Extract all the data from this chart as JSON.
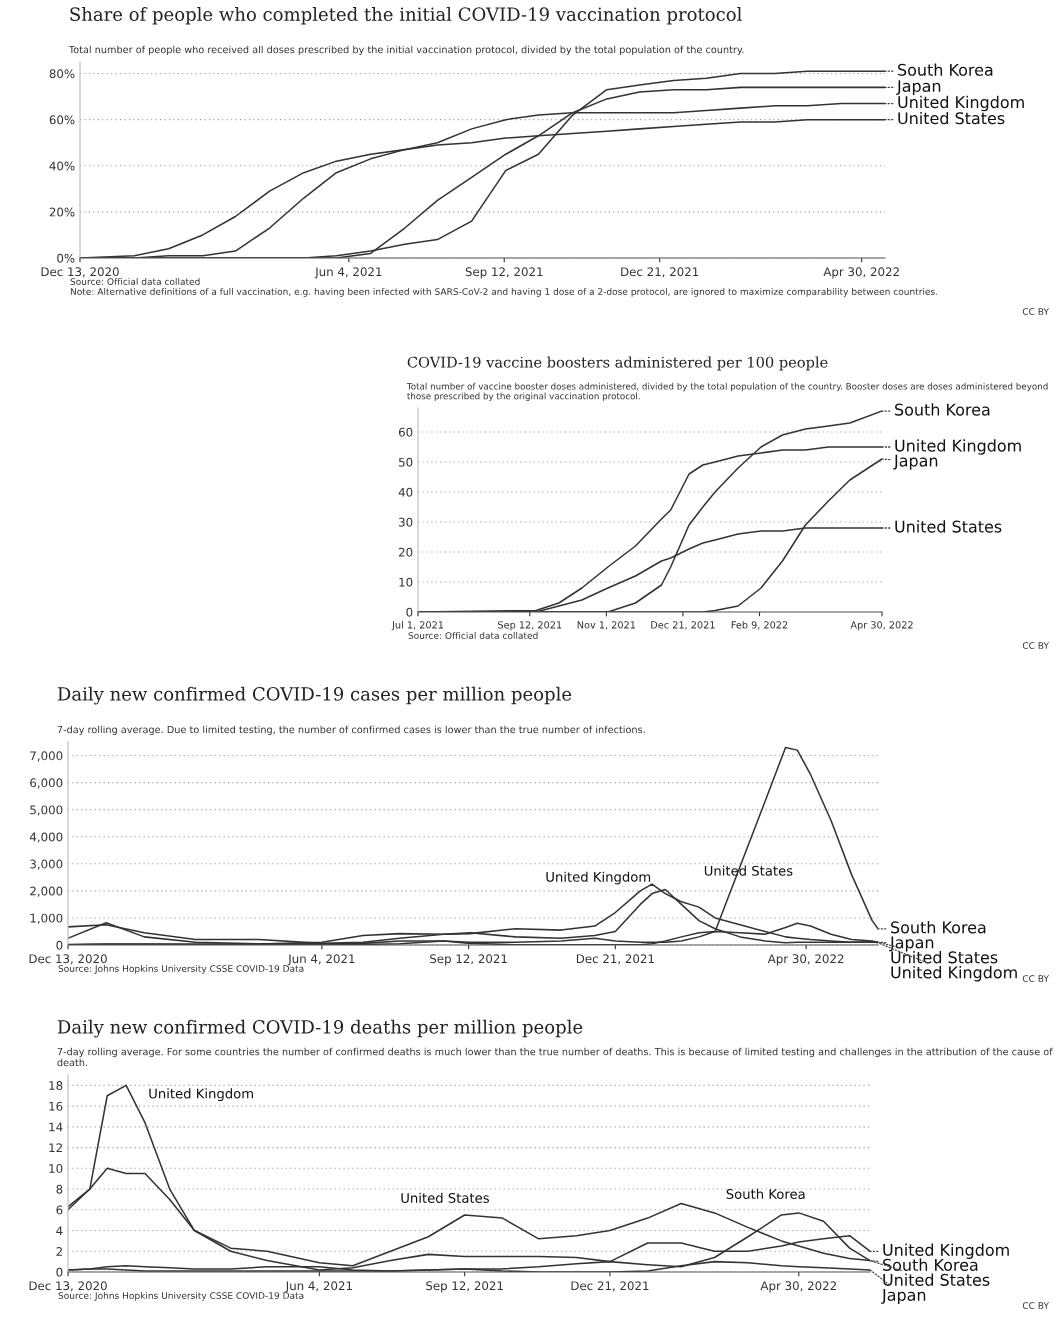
{
  "chart_data": [
    {
      "type": "line",
      "title": "Share of people who completed the initial COVID-19 vaccination protocol",
      "subtitle": "Total number of people who received all doses prescribed by the initial vaccination protocol, divided by the total population of the country.",
      "grid": "y",
      "annotations": [
        "Source: Official data collated",
        "Note: Alternative definitions of a full vaccination, e.g. having been infected with SARS-CoV-2 and having 1 dose of a 2-dose protocol, are ignored to maximize comparability between countries.",
        "CC BY"
      ],
      "x": [
        "2020-12-13",
        "2021-01-17",
        "2021-02-08",
        "2021-03-02",
        "2021-03-23",
        "2021-04-14",
        "2021-05-06",
        "2021-05-27",
        "2021-06-18",
        "2021-07-10",
        "2021-07-31",
        "2021-08-22",
        "2021-09-13",
        "2021-10-04",
        "2021-10-26",
        "2021-11-17",
        "2021-12-08",
        "2021-12-30",
        "2022-01-20",
        "2022-02-11",
        "2022-03-05",
        "2022-03-26",
        "2022-04-17",
        "2022-05-15"
      ],
      "series": [
        {
          "name": "South Korea",
          "color": "#333333",
          "values": [
            0,
            0,
            0,
            0,
            0,
            0,
            0,
            1,
            3,
            6,
            8,
            16,
            38,
            45,
            62,
            73,
            75,
            77,
            78,
            80,
            80,
            81,
            81,
            81
          ]
        },
        {
          "name": "Japan",
          "color": "#333333",
          "values": [
            0,
            0,
            0,
            0,
            0,
            0,
            0,
            0,
            2,
            13,
            25,
            35,
            45,
            53,
            63,
            69,
            72,
            73,
            73,
            74,
            74,
            74,
            74,
            74
          ]
        },
        {
          "name": "United Kingdom",
          "color": "#333333",
          "values": [
            0,
            0,
            1,
            1,
            3,
            13,
            26,
            37,
            43,
            47,
            50,
            56,
            60,
            62,
            63,
            63,
            63,
            63,
            64,
            65,
            66,
            66,
            67,
            67
          ]
        },
        {
          "name": "United States",
          "color": "#333333",
          "values": [
            0,
            1,
            4,
            10,
            18,
            29,
            37,
            42,
            45,
            47,
            49,
            50,
            52,
            53,
            54,
            55,
            56,
            57,
            58,
            59,
            59,
            60,
            60,
            60
          ]
        }
      ],
      "xlim": [
        "2020-12-13",
        "2022-05-15"
      ],
      "xticks": [
        {
          "value": "2020-12-13",
          "label": "Dec 13, 2020"
        },
        {
          "value": "2021-06-04",
          "label": "Jun 4, 2021"
        },
        {
          "value": "2021-09-12",
          "label": "Sep 12, 2021"
        },
        {
          "value": "2021-12-21",
          "label": "Dec 21, 2021"
        },
        {
          "value": "2022-04-30",
          "label": "Apr 30, 2022"
        }
      ],
      "ylim": [
        0,
        85
      ],
      "yticks": [
        {
          "value": 0,
          "label": "0%"
        },
        {
          "value": 20,
          "label": "20%"
        },
        {
          "value": 40,
          "label": "40%"
        },
        {
          "value": 60,
          "label": "60%"
        },
        {
          "value": 80,
          "label": "80%"
        }
      ]
    },
    {
      "type": "line",
      "title": "COVID-19 vaccine boosters administered per 100 people",
      "subtitle": "Total number of vaccine booster doses administered, divided by the total population of the country. Booster doses are doses administered beyond those prescribed by the original vaccination protocol.",
      "grid": "y",
      "annotations": [
        "Source: Official data collated",
        "CC BY"
      ],
      "x": [
        "2021-07-01",
        "2021-09-16",
        "2021-10-01",
        "2021-10-16",
        "2021-11-02",
        "2021-11-20",
        "2021-12-07",
        "2021-12-13",
        "2021-12-25",
        "2022-01-03",
        "2022-01-11",
        "2022-01-26",
        "2022-02-10",
        "2022-02-24",
        "2022-03-11",
        "2022-03-26",
        "2022-04-09",
        "2022-04-30"
      ],
      "series": [
        {
          "name": "South Korea",
          "color": "#333333",
          "values": [
            0,
            0,
            0,
            0,
            0,
            3,
            9,
            15,
            29,
            35,
            40,
            48,
            55,
            59,
            61,
            62,
            63,
            67
          ]
        },
        {
          "name": "United Kingdom",
          "color": "#333333",
          "values": [
            0,
            0.5,
            3,
            8,
            15,
            22,
            31,
            34,
            46,
            49,
            50,
            52,
            53,
            54,
            54,
            55,
            55,
            55
          ]
        },
        {
          "name": "Japan",
          "color": "#333333",
          "values": [
            0,
            0,
            0,
            0,
            0,
            0,
            0,
            0,
            0,
            0,
            0.5,
            2,
            8,
            17,
            29,
            37,
            44,
            51
          ]
        },
        {
          "name": "United States",
          "color": "#333333",
          "values": [
            0,
            0,
            2,
            4,
            8,
            12,
            17,
            18,
            21,
            23,
            24,
            26,
            27,
            27,
            28,
            28,
            28,
            28
          ]
        }
      ],
      "xlim": [
        "2021-07-01",
        "2022-04-30"
      ],
      "xticks": [
        {
          "value": "2021-07-01",
          "label": "Jul 1, 2021"
        },
        {
          "value": "2021-09-12",
          "label": "Sep 12, 2021"
        },
        {
          "value": "2021-11-01",
          "label": "Nov 1, 2021"
        },
        {
          "value": "2021-12-21",
          "label": "Dec 21, 2021"
        },
        {
          "value": "2022-02-09",
          "label": "Feb 9, 2022"
        },
        {
          "value": "2022-04-30",
          "label": "Apr 30, 2022"
        }
      ],
      "ylim": [
        0,
        68
      ],
      "yticks": [
        0,
        10,
        20,
        30,
        40,
        50,
        60
      ]
    },
    {
      "type": "line",
      "title": "Daily new confirmed COVID-19 cases per million people",
      "subtitle": "7-day rolling average. Due to limited testing, the number of confirmed cases is lower than the true number of infections.",
      "grid": "y",
      "annotations": [
        "United Kingdom",
        "United States",
        "Source: Johns Hopkins University CSSE COVID-19 Data",
        "CC BY"
      ],
      "x": [
        "2020-12-13",
        "2021-01-08",
        "2021-02-03",
        "2021-03-10",
        "2021-04-22",
        "2021-06-04",
        "2021-07-02",
        "2021-07-27",
        "2021-08-26",
        "2021-09-13",
        "2021-10-14",
        "2021-11-14",
        "2021-12-07",
        "2021-12-21",
        "2022-01-07",
        "2022-01-15",
        "2022-01-24",
        "2022-02-04",
        "2022-02-16",
        "2022-02-27",
        "2022-03-16",
        "2022-04-02",
        "2022-04-16",
        "2022-04-24",
        "2022-05-03",
        "2022-05-17",
        "2022-05-31",
        "2022-06-14",
        "2022-06-18"
      ],
      "series": [
        {
          "name": "South Korea",
          "color": "#333333",
          "values": [
            20,
            30,
            40,
            40,
            40,
            50,
            60,
            150,
            150,
            100,
            100,
            150,
            250,
            150,
            100,
            100,
            100,
            150,
            300,
            500,
            2900,
            5300,
            7300,
            7200,
            6300,
            4600,
            2600,
            900,
            600
          ]
        },
        {
          "name": "Japan",
          "color": "#333333",
          "values": [
            10,
            40,
            30,
            10,
            30,
            20,
            20,
            50,
            150,
            60,
            10,
            10,
            10,
            10,
            10,
            50,
            150,
            300,
            450,
            500,
            450,
            400,
            650,
            800,
            700,
            400,
            200,
            150,
            100
          ]
        },
        {
          "name": "United Kingdom",
          "color": "#333333",
          "values": [
            250,
            820,
            300,
            100,
            40,
            100,
            350,
            420,
            400,
            420,
            600,
            550,
            700,
            1200,
            2000,
            2250,
            1900,
            1600,
            1400,
            1000,
            750,
            500,
            300,
            250,
            200,
            150,
            100,
            120,
            80
          ]
        },
        {
          "name": "United States",
          "color": "#333333",
          "values": [
            670,
            750,
            450,
            200,
            200,
            60,
            100,
            250,
            400,
            450,
            300,
            250,
            350,
            500,
            1500,
            1900,
            2050,
            1500,
            900,
            600,
            300,
            150,
            80,
            100,
            100,
            100,
            100,
            100,
            100
          ]
        }
      ],
      "xlim": [
        "2020-12-13",
        "2022-06-18"
      ],
      "xticks": [
        {
          "value": "2020-12-13",
          "label": "Dec 13, 2020"
        },
        {
          "value": "2021-06-04",
          "label": "Jun 4, 2021"
        },
        {
          "value": "2021-09-12",
          "label": "Sep 12, 2021"
        },
        {
          "value": "2021-12-21",
          "label": "Dec 21, 2021"
        },
        {
          "value": "2022-04-30",
          "label": "Apr 30, 2022"
        }
      ],
      "ylim": [
        0,
        7500
      ],
      "yticks": [
        0,
        {
          "value": 1000,
          "label": "1,000"
        },
        {
          "value": 2000,
          "label": "2,000"
        },
        {
          "value": 3000,
          "label": "3,000"
        },
        {
          "value": 4000,
          "label": "4,000"
        },
        {
          "value": 5000,
          "label": "5,000"
        },
        {
          "value": 6000,
          "label": "6,000"
        },
        {
          "value": 7000,
          "label": "7,000"
        }
      ]
    },
    {
      "type": "line",
      "title": "Daily new confirmed COVID-19 deaths per million people",
      "subtitle": "7-day rolling average. For some countries the number of confirmed deaths is much lower than the true number of deaths. This is because of limited testing and challenges in the attribution of the cause of death.",
      "grid": "y",
      "annotations": [
        "United Kingdom",
        "United States",
        "South Korea",
        "Source: Johns Hopkins University CSSE COVID-19 Data",
        "CC BY"
      ],
      "x": [
        "2020-12-13",
        "2020-12-28",
        "2021-01-09",
        "2021-01-22",
        "2021-02-04",
        "2021-02-21",
        "2021-03-10",
        "2021-04-04",
        "2021-04-29",
        "2021-06-04",
        "2021-06-27",
        "2021-07-23",
        "2021-08-18",
        "2021-09-12",
        "2021-10-08",
        "2021-11-02",
        "2021-11-28",
        "2021-12-21",
        "2022-01-16",
        "2022-02-08",
        "2022-03-03",
        "2022-03-26",
        "2022-04-18",
        "2022-04-30",
        "2022-05-17",
        "2022-06-04",
        "2022-06-18"
      ],
      "series": [
        {
          "name": "United Kingdom",
          "color": "#333333",
          "values": [
            6.3,
            8,
            17,
            18,
            14.4,
            8,
            4,
            2,
            1.1,
            0.2,
            0.4,
            1.1,
            1.7,
            1.5,
            1.5,
            1.5,
            1.4,
            1,
            2.8,
            2.8,
            2,
            2,
            2.5,
            2.9,
            3.2,
            3.5,
            2
          ]
        },
        {
          "name": "South Korea",
          "color": "#333333",
          "values": [
            0.2,
            0.3,
            0.3,
            0.2,
            0.1,
            0.1,
            0.1,
            0.1,
            0.1,
            0.1,
            0.1,
            0.1,
            0.2,
            0.3,
            0.3,
            0.5,
            0.8,
            1,
            0.7,
            0.5,
            1.4,
            3.4,
            5.5,
            5.7,
            4.9,
            2.3,
            1.1
          ]
        },
        {
          "name": "United States",
          "color": "#333333",
          "values": [
            6,
            8,
            10,
            9.5,
            9.5,
            7,
            4,
            2.3,
            2,
            0.9,
            0.6,
            2,
            3.4,
            5.5,
            5.2,
            3.2,
            3.5,
            4,
            5.2,
            6.6,
            5.7,
            4.3,
            3,
            2.5,
            1.8,
            1.3,
            1.1
          ]
        },
        {
          "name": "Japan",
          "color": "#333333",
          "values": [
            0.2,
            0.3,
            0.5,
            0.6,
            0.5,
            0.4,
            0.3,
            0.3,
            0.5,
            0.5,
            0.2,
            0.1,
            0.2,
            0.3,
            0.1,
            0,
            0,
            0,
            0.1,
            0.6,
            1,
            0.9,
            0.6,
            0.5,
            0.4,
            0.3,
            0.2
          ]
        }
      ],
      "xlim": [
        "2020-12-13",
        "2022-06-18"
      ],
      "xticks": [
        {
          "value": "2020-12-13",
          "label": "Dec 13, 2020"
        },
        {
          "value": "2021-06-04",
          "label": "Jun 4, 2021"
        },
        {
          "value": "2021-09-12",
          "label": "Sep 12, 2021"
        },
        {
          "value": "2021-12-21",
          "label": "Dec 21, 2021"
        },
        {
          "value": "2022-04-30",
          "label": "Apr 30, 2022"
        }
      ],
      "ylim": [
        0,
        19
      ],
      "yticks": [
        0,
        2,
        4,
        6,
        8,
        10,
        12,
        14,
        16,
        18
      ]
    }
  ]
}
